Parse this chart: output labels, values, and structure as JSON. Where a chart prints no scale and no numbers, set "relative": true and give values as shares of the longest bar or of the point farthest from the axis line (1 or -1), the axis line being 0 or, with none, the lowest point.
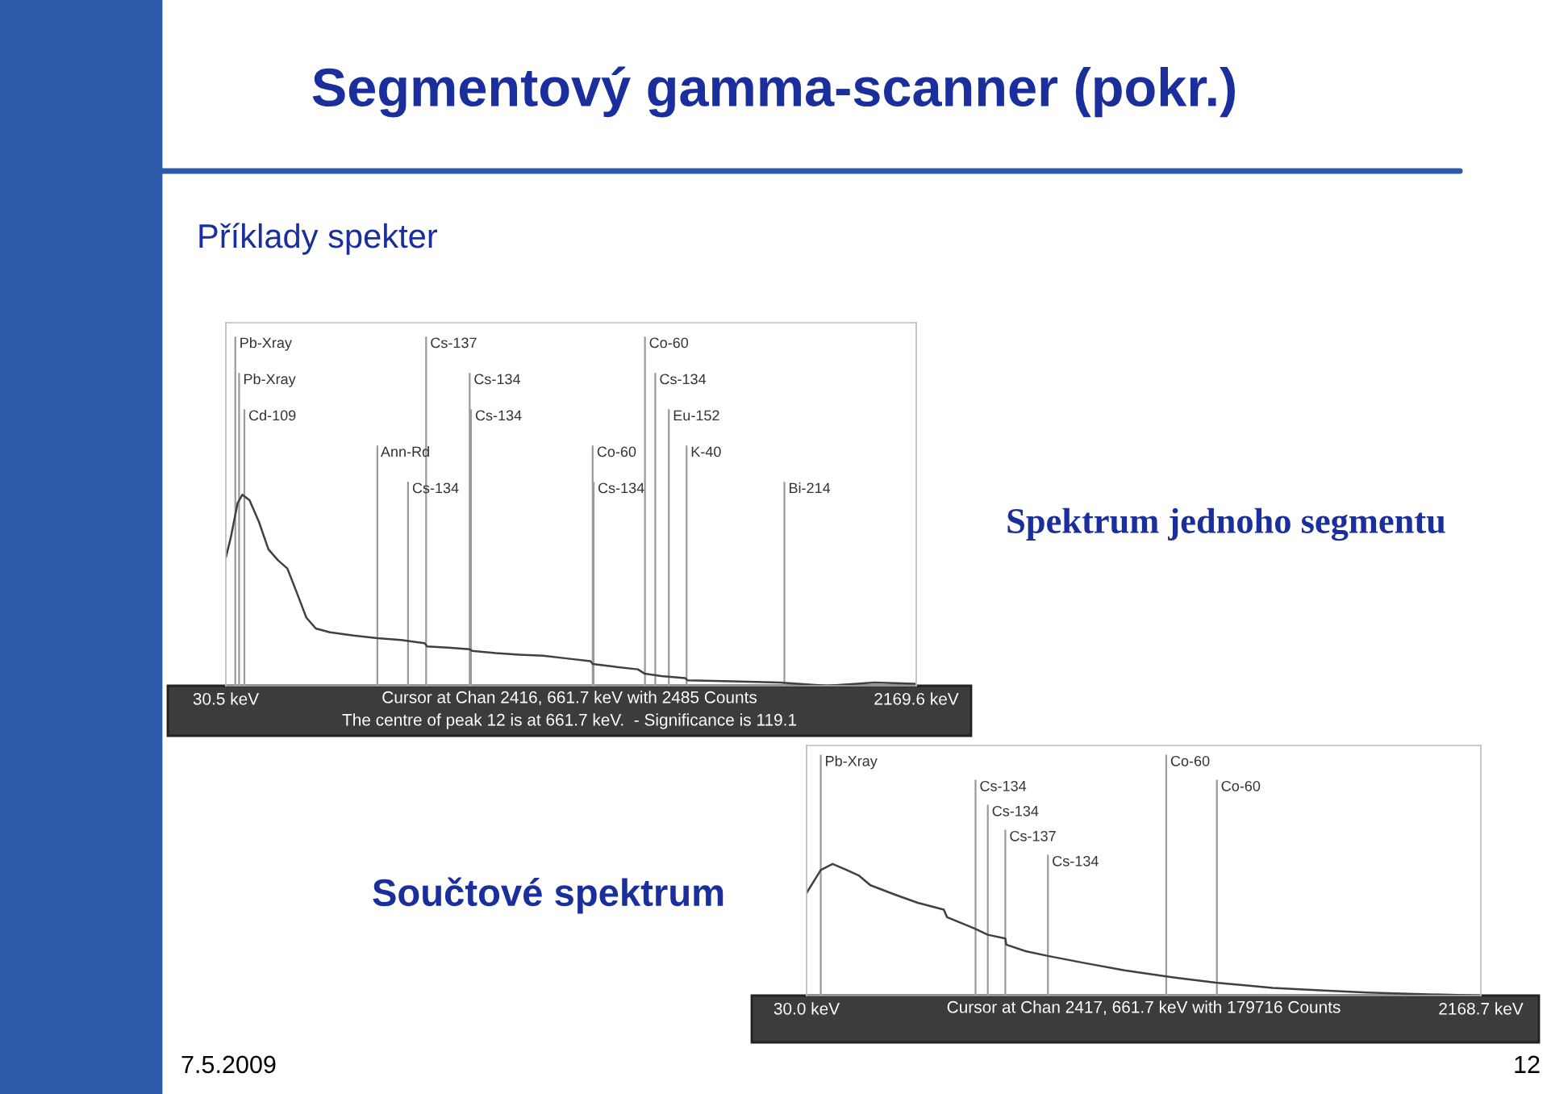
{
  "chart_data": [
    {
      "type": "line",
      "title": "Segmentový gamma-scanner (pokr.)",
      "subtitle": "Příklady spekter",
      "relative": true,
      "tick_labels": "x",
      "grid": false,
      "legend": false,
      "xlim": [
        30.5,
        2169.6
      ],
      "xticks": [
        {
          "value": 30.5,
          "label": "30.5 keV"
        },
        {
          "value": 2169.6,
          "label": "2169.6 keV"
        }
      ],
      "x": [
        30.5,
        45.2,
        67.2,
        81.8,
        103.9,
        133.2,
        162.5,
        191.9,
        221.2,
        250.6,
        279.9,
        309.2,
        353.2,
        426.6,
        499.9,
        573.3,
        646.6,
        654.0,
        720.0,
        786.0,
        793.3,
        866.7,
        940.0,
        1013.4,
        1086.7,
        1160.1,
        1167.4,
        1233.4,
        1306.8,
        1328.8,
        1380.1,
        1453.5,
        1460.8,
        1600.2,
        1746.9,
        1893.6,
        2040.3,
        2165.0
      ],
      "series": [
        {
          "color": "#404040",
          "values": [
            0.671,
            0.771,
            0.957,
            1.0,
            0.971,
            0.857,
            0.714,
            0.657,
            0.614,
            0.486,
            0.357,
            0.3,
            0.28,
            0.263,
            0.249,
            0.24,
            0.223,
            0.206,
            0.2,
            0.191,
            0.183,
            0.171,
            0.163,
            0.157,
            0.143,
            0.129,
            0.114,
            0.1,
            0.086,
            0.063,
            0.051,
            0.04,
            0.029,
            0.023,
            0.017,
            0.0,
            0.017,
            0.011
          ]
        }
      ],
      "annotations": [
        "Cursor at Chan 2416, 661.7 keV with 2485 Counts",
        "The centre of peak 12 is at 661.7 keV.  - Significance is 119.1",
        "Spektrum jednoho segmentu"
      ],
      "ref_lines": [
        {
          "axis": "x",
          "value": 59.8,
          "label": "Pb-Xray",
          "color": "#9a9a9a"
        },
        {
          "axis": "x",
          "value": 71.6,
          "label": "Pb-Xray",
          "color": "#9a9a9a"
        },
        {
          "axis": "x",
          "value": 88.0,
          "label": "Cd-109",
          "color": "#9a9a9a"
        },
        {
          "axis": "x",
          "value": 500,
          "label": "Ann-Rd",
          "color": "#9a9a9a"
        },
        {
          "axis": "x",
          "value": 595,
          "label": "Cs-134",
          "color": "#9a9a9a"
        },
        {
          "axis": "x",
          "value": 651,
          "label": "Cs-137",
          "color": "#9a9a9a"
        },
        {
          "axis": "x",
          "value": 786,
          "label": "Cs-134",
          "color": "#9a9a9a"
        },
        {
          "axis": "x",
          "value": 790,
          "label": "Cs-134",
          "color": "#9a9a9a"
        },
        {
          "axis": "x",
          "value": 1167,
          "label": "Co-60",
          "color": "#9a9a9a"
        },
        {
          "axis": "x",
          "value": 1170,
          "label": "Cs-134",
          "color": "#9a9a9a"
        },
        {
          "axis": "x",
          "value": 1329,
          "label": "Co-60",
          "color": "#9a9a9a"
        },
        {
          "axis": "x",
          "value": 1361,
          "label": "Cs-134",
          "color": "#9a9a9a"
        },
        {
          "axis": "x",
          "value": 1403,
          "label": "Eu-152",
          "color": "#9a9a9a"
        },
        {
          "axis": "x",
          "value": 1458,
          "label": "K-40",
          "color": "#9a9a9a"
        },
        {
          "axis": "x",
          "value": 1761,
          "label": "Bi-214",
          "color": "#9a9a9a"
        }
      ]
    },
    {
      "type": "line",
      "title": "Součtové spektrum",
      "relative": true,
      "tick_labels": "x",
      "grid": false,
      "legend": false,
      "xlim": [
        30.0,
        2168.7
      ],
      "xticks": [
        {
          "value": 30.0,
          "label": "30.0 keV"
        },
        {
          "value": 2168.7,
          "label": "2168.7 keV"
        }
      ],
      "x": [
        30.0,
        52.5,
        75.0,
        112.6,
        157.6,
        195.1,
        232.6,
        307.7,
        382.7,
        465.3,
        475.8,
        562.9,
        604.9,
        660.4,
        663.4,
        728.0,
        795.5,
        908.1,
        1038.7,
        1170.8,
        1208.3,
        1328.4,
        1433.4,
        1508.5,
        1658.6,
        1808.7,
        1958.8,
        2168.7
      ],
      "series": [
        {
          "color": "#404040",
          "values": [
            0.78,
            0.867,
            0.954,
            1.0,
            0.954,
            0.913,
            0.838,
            0.769,
            0.705,
            0.653,
            0.595,
            0.509,
            0.462,
            0.434,
            0.387,
            0.335,
            0.301,
            0.249,
            0.191,
            0.145,
            0.133,
            0.098,
            0.075,
            0.058,
            0.04,
            0.023,
            0.012,
            0.0
          ]
        }
      ],
      "annotations": [
        "Cursor at Chan 2417, 661.7 keV with 179716 Counts",
        "7.5.2009",
        "12"
      ],
      "ref_lines": [
        {
          "axis": "x",
          "value": 75.0,
          "label": "Pb-Xray",
          "color": "#9a9a9a"
        },
        {
          "axis": "x",
          "value": 565.9,
          "label": "Cs-134",
          "color": "#9a9a9a"
        },
        {
          "axis": "x",
          "value": 604.9,
          "label": "Cs-134",
          "color": "#9a9a9a"
        },
        {
          "axis": "x",
          "value": 660.4,
          "label": "Cs-137",
          "color": "#9a9a9a"
        },
        {
          "axis": "x",
          "value": 795.5,
          "label": "Cs-134",
          "color": "#9a9a9a"
        },
        {
          "axis": "x",
          "value": 1170.8,
          "label": "Co-60",
          "color": "#9a9a9a"
        },
        {
          "axis": "x",
          "value": 1331.4,
          "label": "Co-60",
          "color": "#9a9a9a"
        }
      ]
    }
  ]
}
